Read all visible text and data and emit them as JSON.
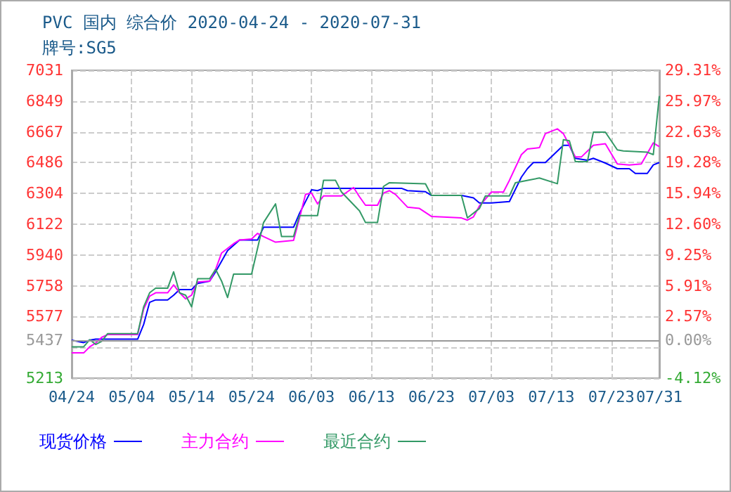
{
  "chart_data": {
    "type": "line",
    "title": "PVC 国内 综合价 2020-04-24 - 2020-07-31",
    "subtitle": "牌号:SG5",
    "x": [
      "--04-24",
      "--04-26",
      "--04-27",
      "--04-28",
      "--05-05",
      "--05-06",
      "--05-07",
      "--05-08",
      "--05-10",
      "--05-11",
      "--05-12",
      "--05-14",
      "--05-15",
      "--05-17",
      "--05-18",
      "--05-20",
      "--05-22",
      "--05-25",
      "--05-26",
      "--05-31",
      "--06-01",
      "--06-03",
      "--06-04",
      "--06-05",
      "--06-18",
      "--06-19",
      "--06-22",
      "--06-23",
      "--06-28",
      "--06-30",
      "--07-01",
      "--07-03",
      "--07-06",
      "--07-08",
      "--07-09",
      "--07-10",
      "--07-12",
      "--07-15",
      "--07-16",
      "--07-17",
      "--07-19",
      "--07-20",
      "--07-22",
      "--07-24",
      "--07-26",
      "--07-27",
      "--07-29",
      "--07-30",
      "--07-31"
    ],
    "series": [
      {
        "name": "现货价格",
        "color": "#0000ff",
        "values": [
          5437,
          5423,
          5437,
          5443,
          5443,
          5530,
          5661,
          5675,
          5675,
          5703,
          5736,
          5736,
          5772,
          5786,
          5841,
          5966,
          6029,
          6029,
          6104,
          6104,
          6187,
          6325,
          6320,
          6334,
          6334,
          6320,
          6314,
          6292,
          6292,
          6278,
          6248,
          6248,
          6256,
          6400,
          6450,
          6486,
          6486,
          6588,
          6588,
          6511,
          6500,
          6511,
          6483,
          6450,
          6450,
          6422,
          6422,
          6472,
          6486
        ]
      },
      {
        "name": "主力合约",
        "color": "#ff00ff",
        "x": [
          "--04-24",
          "--04-26",
          "--04-27",
          "--04-28",
          "--04-29",
          "--04-30",
          "--05-05",
          "--05-06",
          "--05-07",
          "--05-08",
          "--05-10",
          "--05-11",
          "--05-12",
          "--05-13",
          "--05-14",
          "--05-15",
          "--05-17",
          "--05-18",
          "--05-19",
          "--05-21",
          "--05-22",
          "--05-24",
          "--05-25",
          "--05-26",
          "--05-28",
          "--05-31",
          "--06-01",
          "--06-02",
          "--06-03",
          "--06-04",
          "--06-05",
          "--06-08",
          "--06-10",
          "--06-11",
          "--06-12",
          "--06-14",
          "--06-15",
          "--06-16",
          "--06-17",
          "--06-19",
          "--06-21",
          "--06-23",
          "--06-25",
          "--06-28",
          "--06-29",
          "--06-30",
          "--07-01",
          "--07-03",
          "--07-05",
          "--07-06",
          "--07-08",
          "--07-09",
          "--07-11",
          "--07-12",
          "--07-14",
          "--07-15",
          "--07-16",
          "--07-17",
          "--07-18",
          "--07-20",
          "--07-22",
          "--07-24",
          "--07-26",
          "--07-28",
          "--07-30",
          "--07-31"
        ],
        "values": [
          5362,
          5362,
          5398,
          5420,
          5454,
          5470,
          5470,
          5620,
          5697,
          5717,
          5717,
          5764,
          5717,
          5681,
          5703,
          5781,
          5786,
          5855,
          5952,
          6007,
          6029,
          6035,
          6068,
          6049,
          6016,
          6027,
          6159,
          6298,
          6306,
          6242,
          6289,
          6289,
          6339,
          6284,
          6234,
          6234,
          6306,
          6320,
          6298,
          6223,
          6215,
          6168,
          6165,
          6159,
          6146,
          6165,
          6230,
          6312,
          6312,
          6381,
          6533,
          6566,
          6574,
          6657,
          6685,
          6657,
          6588,
          6519,
          6519,
          6588,
          6597,
          6478,
          6472,
          6478,
          6602,
          6580
        ]
      },
      {
        "name": "最近合约",
        "color": "#339966",
        "x": [
          "--04-24",
          "--04-26",
          "--04-27",
          "--04-28",
          "--04-29",
          "--04-30",
          "--05-05",
          "--05-06",
          "--05-07",
          "--05-08",
          "--05-10",
          "--05-11",
          "--05-12",
          "--05-13",
          "--05-14",
          "--05-15",
          "--05-17",
          "--05-18",
          "--05-19",
          "--05-20",
          "--05-21",
          "--05-24",
          "--05-26",
          "--05-28",
          "--05-29",
          "--05-31",
          "--06-01",
          "--06-04",
          "--06-05",
          "--06-07",
          "--06-08",
          "--06-11",
          "--06-12",
          "--06-14",
          "--06-15",
          "--06-16",
          "--06-22",
          "--06-23",
          "--06-28",
          "--06-29",
          "--07-01",
          "--07-02",
          "--07-06",
          "--07-07",
          "--07-11",
          "--07-14",
          "--07-15",
          "--07-16",
          "--07-17",
          "--07-19",
          "--07-20",
          "--07-22",
          "--07-24",
          "--07-25",
          "--07-29",
          "--07-30",
          "--07-31"
        ],
        "values": [
          5398,
          5398,
          5440,
          5412,
          5430,
          5476,
          5476,
          5634,
          5717,
          5744,
          5744,
          5841,
          5717,
          5703,
          5634,
          5800,
          5800,
          5855,
          5786,
          5689,
          5827,
          5827,
          6132,
          6242,
          6049,
          6049,
          6173,
          6173,
          6381,
          6381,
          6312,
          6201,
          6132,
          6132,
          6345,
          6367,
          6361,
          6292,
          6292,
          6159,
          6215,
          6289,
          6289,
          6367,
          6395,
          6361,
          6621,
          6615,
          6491,
          6491,
          6666,
          6666,
          6561,
          6555,
          6547,
          6533,
          6879
        ]
      }
    ],
    "xlim": [
      "--04-24",
      "--07-31"
    ],
    "xticks": [
      {
        "value": "--04-24",
        "label": "04/24"
      },
      {
        "value": "--05-04",
        "label": "05/04"
      },
      {
        "value": "--05-14",
        "label": "05/14"
      },
      {
        "value": "--05-24",
        "label": "05/24"
      },
      {
        "value": "--06-03",
        "label": "06/03"
      },
      {
        "value": "--06-13",
        "label": "06/13"
      },
      {
        "value": "--06-23",
        "label": "06/23"
      },
      {
        "value": "--07-03",
        "label": "07/03"
      },
      {
        "value": "--07-13",
        "label": "07/13"
      },
      {
        "value": "--07-23",
        "label": "07/23"
      },
      {
        "value": "--07-31",
        "label": "07/31"
      }
    ],
    "ylim": [
      5213,
      7031
    ],
    "yticks": [
      5213,
      {
        "value": 5395,
        "label": null
      },
      5437,
      5577,
      5758,
      5940,
      6122,
      6304,
      6486,
      6667,
      6849,
      7031
    ],
    "y2lim": [
      -4.12,
      29.31
    ],
    "y2ticks": [
      {
        "value": -4.12,
        "label": "-4.12%"
      },
      {
        "value": 0,
        "label": "0.00%"
      },
      {
        "value": 2.57,
        "label": "2.57%"
      },
      {
        "value": 5.91,
        "label": "5.91%"
      },
      {
        "value": 9.25,
        "label": "9.25%"
      },
      {
        "value": 12.6,
        "label": "12.60%"
      },
      {
        "value": 15.94,
        "label": "15.94%"
      },
      {
        "value": 19.28,
        "label": "19.28%"
      },
      {
        "value": 22.63,
        "label": "22.63%"
      },
      {
        "value": 25.97,
        "label": "25.97%"
      },
      {
        "value": 29.31,
        "label": "29.31%"
      }
    ],
    "ref_lines": [
      {
        "axis": "y",
        "value": 5437,
        "color": "#999999"
      }
    ],
    "grid": true,
    "legend": "bottom",
    "marker": "none",
    "line_style": "solid"
  }
}
